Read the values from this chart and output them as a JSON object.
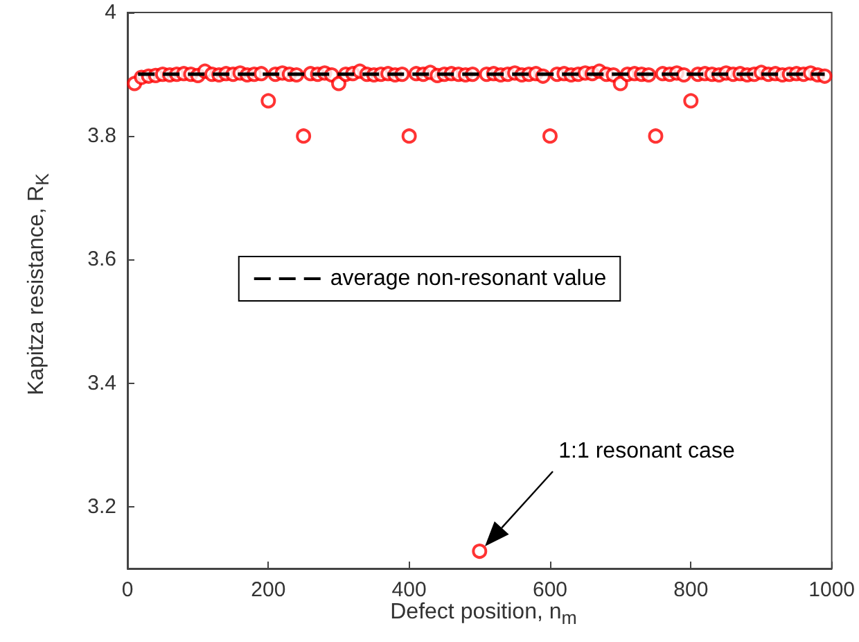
{
  "chart_data": {
    "type": "scatter",
    "xlabel": "Defect position, n$_{m}$",
    "ylabel": "Kapitza resistance, R$_{K}$",
    "xlim": [
      0,
      1000
    ],
    "xticks": [
      0,
      200,
      400,
      600,
      800,
      1000
    ],
    "ylim": [
      3.1,
      4
    ],
    "yticks": [
      3.2,
      3.4,
      3.6,
      3.8,
      4
    ],
    "grid": false,
    "legend": "center",
    "annotations": [
      "1:1 resonant case"
    ],
    "series": [
      {
        "color": "#ff0000",
        "x": [
          10,
          20,
          30,
          40,
          50,
          60,
          70,
          80,
          90,
          100,
          110,
          120,
          130,
          140,
          150,
          160,
          170,
          180,
          190,
          200,
          210,
          220,
          230,
          240,
          250,
          260,
          270,
          280,
          290,
          300,
          310,
          320,
          330,
          340,
          350,
          360,
          370,
          380,
          390,
          400,
          410,
          420,
          430,
          440,
          450,
          460,
          470,
          480,
          490,
          500,
          510,
          520,
          530,
          540,
          550,
          560,
          570,
          580,
          590,
          600,
          610,
          620,
          630,
          640,
          650,
          660,
          670,
          680,
          690,
          700,
          710,
          720,
          730,
          740,
          750,
          760,
          770,
          780,
          790,
          800,
          810,
          820,
          830,
          840,
          850,
          860,
          870,
          880,
          890,
          900,
          910,
          920,
          930,
          940,
          950,
          960,
          970,
          980,
          990
        ],
        "marker": "circle",
        "values": [
          3.885,
          3.895,
          3.897,
          3.898,
          3.9,
          3.899,
          3.9,
          3.901,
          3.9,
          3.898,
          3.905,
          3.9,
          3.899,
          3.901,
          3.9,
          3.902,
          3.899,
          3.9,
          3.901,
          3.857,
          3.9,
          3.902,
          3.9,
          3.899,
          3.8,
          3.901,
          3.9,
          3.902,
          3.899,
          3.885,
          3.9,
          3.901,
          3.905,
          3.9,
          3.899,
          3.9,
          3.901,
          3.899,
          3.9,
          3.8,
          3.901,
          3.9,
          3.903,
          3.898,
          3.9,
          3.901,
          3.9,
          3.899,
          3.9,
          3.128,
          3.9,
          3.901,
          3.899,
          3.9,
          3.902,
          3.899,
          3.9,
          3.901,
          3.897,
          3.8,
          3.9,
          3.901,
          3.899,
          3.9,
          3.902,
          3.901,
          3.905,
          3.9,
          3.899,
          3.885,
          3.9,
          3.901,
          3.9,
          3.899,
          3.8,
          3.901,
          3.9,
          3.902,
          3.899,
          3.857,
          3.9,
          3.901,
          3.9,
          3.899,
          3.902,
          3.9,
          3.901,
          3.899,
          3.9,
          3.903,
          3.9,
          3.901,
          3.899,
          3.9,
          3.901,
          3.9,
          3.902,
          3.899,
          3.897
        ]
      },
      {
        "type": "line",
        "name": "average non-resonant value",
        "color": "#000000",
        "line_style": "dashed",
        "marker": "none",
        "x": [
          15,
          990
        ],
        "values": [
          3.9,
          3.9
        ]
      }
    ]
  }
}
